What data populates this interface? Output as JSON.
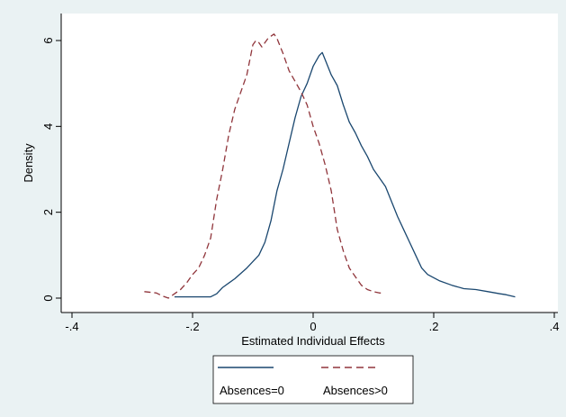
{
  "chart_data": {
    "type": "line",
    "title": "",
    "xlabel": "Estimated Individual Effects",
    "ylabel": "Density",
    "xlim": [
      -0.4,
      0.4
    ],
    "ylim": [
      0,
      6.2
    ],
    "x_ticks": [
      -0.4,
      -0.2,
      0,
      0.2,
      0.4
    ],
    "x_tick_labels": [
      "-.4",
      "-.2",
      "0",
      ".2",
      ".4"
    ],
    "y_ticks": [
      0,
      2,
      4,
      6
    ],
    "y_tick_labels": [
      "0",
      "2",
      "4",
      "6"
    ],
    "grid": false,
    "legend_position": "bottom",
    "series": [
      {
        "name": "Absences=0",
        "color": "#1a476f",
        "dash": "solid",
        "points": [
          [
            -0.23,
            0.03
          ],
          [
            -0.2,
            0.03
          ],
          [
            -0.17,
            0.03
          ],
          [
            -0.16,
            0.1
          ],
          [
            -0.15,
            0.25
          ],
          [
            -0.13,
            0.45
          ],
          [
            -0.11,
            0.7
          ],
          [
            -0.09,
            1.0
          ],
          [
            -0.08,
            1.3
          ],
          [
            -0.07,
            1.8
          ],
          [
            -0.06,
            2.5
          ],
          [
            -0.05,
            3.0
          ],
          [
            -0.04,
            3.6
          ],
          [
            -0.03,
            4.2
          ],
          [
            -0.02,
            4.7
          ],
          [
            -0.01,
            5.0
          ],
          [
            0.0,
            5.4
          ],
          [
            0.01,
            5.65
          ],
          [
            0.015,
            5.72
          ],
          [
            0.02,
            5.55
          ],
          [
            0.03,
            5.2
          ],
          [
            0.04,
            4.95
          ],
          [
            0.05,
            4.5
          ],
          [
            0.06,
            4.1
          ],
          [
            0.07,
            3.85
          ],
          [
            0.08,
            3.55
          ],
          [
            0.09,
            3.3
          ],
          [
            0.1,
            3.0
          ],
          [
            0.12,
            2.6
          ],
          [
            0.14,
            1.9
          ],
          [
            0.15,
            1.6
          ],
          [
            0.16,
            1.3
          ],
          [
            0.17,
            1.0
          ],
          [
            0.18,
            0.7
          ],
          [
            0.19,
            0.55
          ],
          [
            0.21,
            0.4
          ],
          [
            0.23,
            0.3
          ],
          [
            0.25,
            0.22
          ],
          [
            0.27,
            0.2
          ],
          [
            0.29,
            0.15
          ],
          [
            0.31,
            0.1
          ],
          [
            0.32,
            0.08
          ],
          [
            0.335,
            0.03
          ]
        ]
      },
      {
        "name": "Absences>0",
        "color": "#90353b",
        "dash": "dashed",
        "points": [
          [
            -0.28,
            0.15
          ],
          [
            -0.26,
            0.12
          ],
          [
            -0.25,
            0.05
          ],
          [
            -0.24,
            0.0
          ],
          [
            -0.23,
            0.1
          ],
          [
            -0.22,
            0.2
          ],
          [
            -0.21,
            0.35
          ],
          [
            -0.2,
            0.55
          ],
          [
            -0.19,
            0.7
          ],
          [
            -0.18,
            1.0
          ],
          [
            -0.17,
            1.4
          ],
          [
            -0.16,
            2.3
          ],
          [
            -0.15,
            3.0
          ],
          [
            -0.14,
            3.8
          ],
          [
            -0.13,
            4.4
          ],
          [
            -0.12,
            4.8
          ],
          [
            -0.11,
            5.2
          ],
          [
            -0.1,
            5.9
          ],
          [
            -0.095,
            6.0
          ],
          [
            -0.09,
            5.95
          ],
          [
            -0.085,
            5.85
          ],
          [
            -0.08,
            5.95
          ],
          [
            -0.075,
            6.05
          ],
          [
            -0.07,
            6.1
          ],
          [
            -0.065,
            6.15
          ],
          [
            -0.06,
            6.05
          ],
          [
            -0.05,
            5.7
          ],
          [
            -0.04,
            5.3
          ],
          [
            -0.03,
            5.05
          ],
          [
            -0.02,
            4.8
          ],
          [
            -0.01,
            4.5
          ],
          [
            0.0,
            4.0
          ],
          [
            0.01,
            3.6
          ],
          [
            0.02,
            3.1
          ],
          [
            0.03,
            2.5
          ],
          [
            0.04,
            1.6
          ],
          [
            0.05,
            1.1
          ],
          [
            0.06,
            0.7
          ],
          [
            0.07,
            0.5
          ],
          [
            0.08,
            0.3
          ],
          [
            0.09,
            0.2
          ],
          [
            0.1,
            0.15
          ],
          [
            0.11,
            0.12
          ],
          [
            0.115,
            0.12
          ]
        ]
      }
    ]
  }
}
